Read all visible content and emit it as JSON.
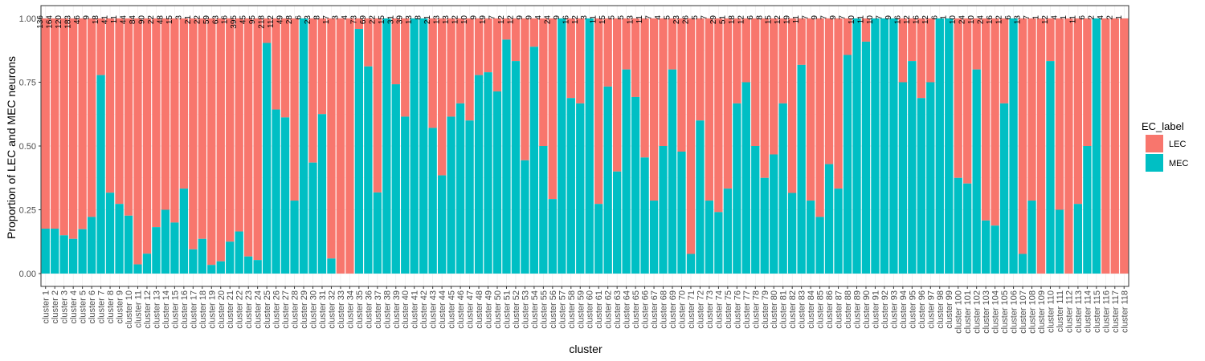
{
  "chart_data": {
    "type": "bar",
    "stacked": true,
    "title": "",
    "xlabel": "cluster",
    "ylabel": "Proportion of LEC and MEC neurons",
    "ylim": [
      0,
      1
    ],
    "yticks": [
      "0.00",
      "0.25",
      "0.50",
      "0.75",
      "1.00"
    ],
    "grid": true,
    "legend": {
      "title": "EC_label",
      "placement": "right",
      "entries": [
        {
          "name": "LEC",
          "color": "#F8766D"
        },
        {
          "name": "MEC",
          "color": "#00BFC4"
        }
      ]
    },
    "categories": [
      "cluster 1",
      "cluster 2",
      "cluster 3",
      "cluster 4",
      "cluster 5",
      "cluster 6",
      "cluster 7",
      "cluster 8",
      "cluster 9",
      "cluster 10",
      "cluster 11",
      "cluster 12",
      "cluster 13",
      "cluster 14",
      "cluster 15",
      "cluster 16",
      "cluster 17",
      "cluster 18",
      "cluster 19",
      "cluster 20",
      "cluster 21",
      "cluster 22",
      "cluster 23",
      "cluster 24",
      "cluster 25",
      "cluster 26",
      "cluster 27",
      "cluster 28",
      "cluster 29",
      "cluster 30",
      "cluster 31",
      "cluster 32",
      "cluster 33",
      "cluster 34",
      "cluster 35",
      "cluster 36",
      "cluster 37",
      "cluster 38",
      "cluster 39",
      "cluster 40",
      "cluster 41",
      "cluster 42",
      "cluster 43",
      "cluster 44",
      "cluster 45",
      "cluster 46",
      "cluster 47",
      "cluster 48",
      "cluster 49",
      "cluster 50",
      "cluster 51",
      "cluster 52",
      "cluster 53",
      "cluster 54",
      "cluster 55",
      "cluster 56",
      "cluster 57",
      "cluster 58",
      "cluster 59",
      "cluster 60",
      "cluster 61",
      "cluster 62",
      "cluster 63",
      "cluster 64",
      "cluster 65",
      "cluster 66",
      "cluster 67",
      "cluster 68",
      "cluster 69",
      "cluster 70",
      "cluster 71",
      "cluster 72",
      "cluster 73",
      "cluster 74",
      "cluster 75",
      "cluster 76",
      "cluster 77",
      "cluster 78",
      "cluster 79",
      "cluster 80",
      "cluster 81",
      "cluster 82",
      "cluster 83",
      "cluster 84",
      "cluster 85",
      "cluster 86",
      "cluster 87",
      "cluster 88",
      "cluster 89",
      "cluster 90",
      "cluster 91",
      "cluster 92",
      "cluster 93",
      "cluster 94",
      "cluster 95",
      "cluster 96",
      "cluster 97",
      "cluster 98",
      "cluster 99",
      "cluster 100",
      "cluster 101",
      "cluster 102",
      "cluster 103",
      "cluster 104",
      "cluster 105",
      "cluster 106",
      "cluster 107",
      "cluster 108",
      "cluster 109",
      "cluster 110",
      "cluster 111",
      "cluster 112",
      "cluster 113",
      "cluster 114",
      "cluster 115",
      "cluster 116",
      "cluster 117",
      "cluster 118"
    ],
    "mec_proportion": [
      0.176,
      0.176,
      0.15,
      0.136,
      0.174,
      0.222,
      0.778,
      0.317,
      0.273,
      0.227,
      0.036,
      0.078,
      0.182,
      0.25,
      0.2,
      0.333,
      0.095,
      0.136,
      0.034,
      0.048,
      0.125,
      0.165,
      0.067,
      0.053,
      0.904,
      0.643,
      0.612,
      0.286,
      1.0,
      0.435,
      0.625,
      0.059,
      0.0,
      0.0,
      0.959,
      0.812,
      0.318,
      1.0,
      0.742,
      0.615,
      1.0,
      1.0,
      0.571,
      0.385,
      0.615,
      0.667,
      0.6,
      0.778,
      0.789,
      0.714,
      0.917,
      0.833,
      0.444,
      0.889,
      0.5,
      0.292,
      1.0,
      0.688,
      0.667,
      1.0,
      0.273,
      0.733,
      0.4,
      0.8,
      0.692,
      0.455,
      0.286,
      0.5,
      0.8,
      0.478,
      0.077,
      0.6,
      0.286,
      0.241,
      0.333,
      0.667,
      0.75,
      0.5,
      0.375,
      0.467,
      0.667,
      0.316,
      0.818,
      0.286,
      0.222,
      0.429,
      0.333,
      0.857,
      1.0,
      0.909,
      1.0,
      1.0,
      1.0,
      0.75,
      0.833,
      0.688,
      0.75,
      1.0,
      1.0,
      0.375,
      0.353,
      0.8,
      0.208,
      0.188,
      0.667,
      1.0,
      0.077,
      0.286,
      0.0,
      0.833,
      0.25,
      0.0,
      0.273,
      0.5,
      1.0,
      0.0,
      0.0,
      0.0
    ],
    "counts": [
      "136",
      "164",
      "120",
      "183",
      "46",
      "9",
      "18",
      "41",
      "11",
      "44",
      "84",
      "90",
      "22",
      "48",
      "15",
      "3",
      "21",
      "22",
      "59",
      "63",
      "16",
      "395",
      "45",
      "95",
      "218",
      "112",
      "49",
      "28",
      "6",
      "23",
      "8",
      "17",
      "3",
      "4",
      "73",
      "69",
      "22",
      "15",
      "31",
      "39",
      "13",
      "8",
      "21",
      "13",
      "13",
      "12",
      "10",
      "9",
      "19",
      "7",
      "12",
      "12",
      "9",
      "9",
      "4",
      "24",
      "9",
      "16",
      "12",
      "3",
      "11",
      "15",
      "5",
      "5",
      "13",
      "11",
      "7",
      "4",
      "5",
      "23",
      "26",
      "5",
      "7",
      "29",
      "51",
      "18",
      "12",
      "6",
      "8",
      "15",
      "12",
      "19",
      "11",
      "7",
      "9",
      "7",
      "9",
      "7",
      "10",
      "11",
      "10",
      "7",
      "9",
      "16",
      "12",
      "16",
      "12",
      "6",
      "1",
      "10",
      "24",
      "10",
      "24",
      "16",
      "12",
      "6",
      "13",
      "7",
      "1",
      "12",
      "4",
      "1",
      "11",
      "6",
      "2",
      "4",
      "2",
      "1"
    ]
  }
}
